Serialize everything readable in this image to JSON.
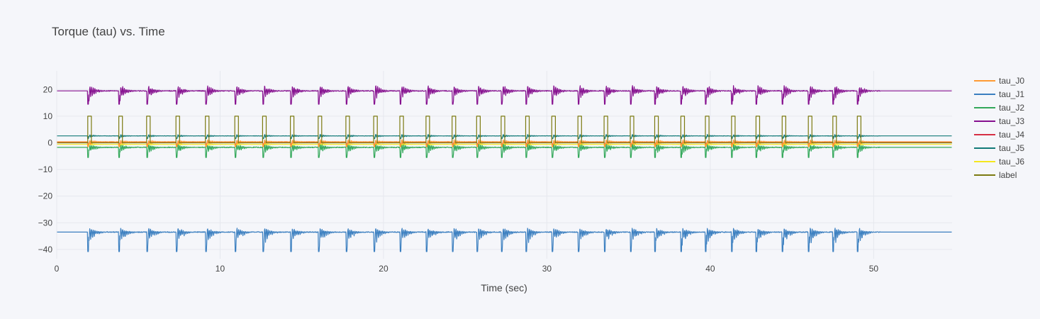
{
  "chart_data": {
    "type": "line",
    "title": "Torque (tau) vs. Time",
    "xlabel": "Time (sec)",
    "ylabel": "",
    "xlim": [
      0,
      54.8
    ],
    "ylim": [
      -43.5,
      27
    ],
    "xticks": [
      0,
      10,
      20,
      30,
      40,
      50
    ],
    "yticks": [
      -40,
      -30,
      -20,
      -10,
      0,
      10,
      20
    ],
    "grid": true,
    "legend": "right",
    "event_onsets": [
      1.9,
      3.8,
      5.5,
      7.3,
      9.1,
      10.9,
      12.6,
      14.3,
      16.0,
      17.7,
      19.4,
      21.0,
      22.6,
      24.2,
      25.7,
      27.2,
      28.7,
      30.3,
      31.9,
      33.5,
      35.1,
      36.6,
      38.2,
      39.7,
      41.3,
      42.8,
      44.4,
      46.0,
      47.5,
      49.0
    ],
    "event_duration": 0.22,
    "series": [
      {
        "name": "tau_J0",
        "color": "#ff9a33",
        "baseline": 0.4,
        "spike_min": -1.5,
        "spike_max": 1.8,
        "noise": 0.3,
        "quiet_after": 50.4
      },
      {
        "name": "tau_J1",
        "color": "#3b7fc0",
        "baseline": -33.5,
        "spike_min": -40.8,
        "spike_max": -30.8,
        "noise": 0.5,
        "quiet_after": 50.4
      },
      {
        "name": "tau_J2",
        "color": "#33a85a",
        "baseline": -1.7,
        "spike_min": -5.5,
        "spike_max": 0.5,
        "noise": 0.5,
        "quiet_after": 50.4
      },
      {
        "name": "tau_J3",
        "color": "#86108f",
        "baseline": 19.5,
        "spike_min": 14.5,
        "spike_max": 23.2,
        "noise": 0.5,
        "quiet_after": 50.4
      },
      {
        "name": "tau_J4",
        "color": "#d62f44",
        "baseline": 0.1,
        "spike_min": -0.6,
        "spike_max": 0.9,
        "noise": 0.1,
        "quiet_after": 50.4
      },
      {
        "name": "tau_J5",
        "color": "#127a78",
        "baseline": 2.6,
        "spike_min": 1.6,
        "spike_max": 3.6,
        "noise": 0.2,
        "quiet_after": 50.4
      },
      {
        "name": "tau_J6",
        "color": "#f5e71e",
        "baseline": -0.6,
        "spike_min": -1.3,
        "spike_max": 0.2,
        "noise": 0.1,
        "quiet_after": 50.4
      },
      {
        "name": "label",
        "color": "#7c7a10",
        "baseline": 0,
        "high": 10
      }
    ]
  }
}
